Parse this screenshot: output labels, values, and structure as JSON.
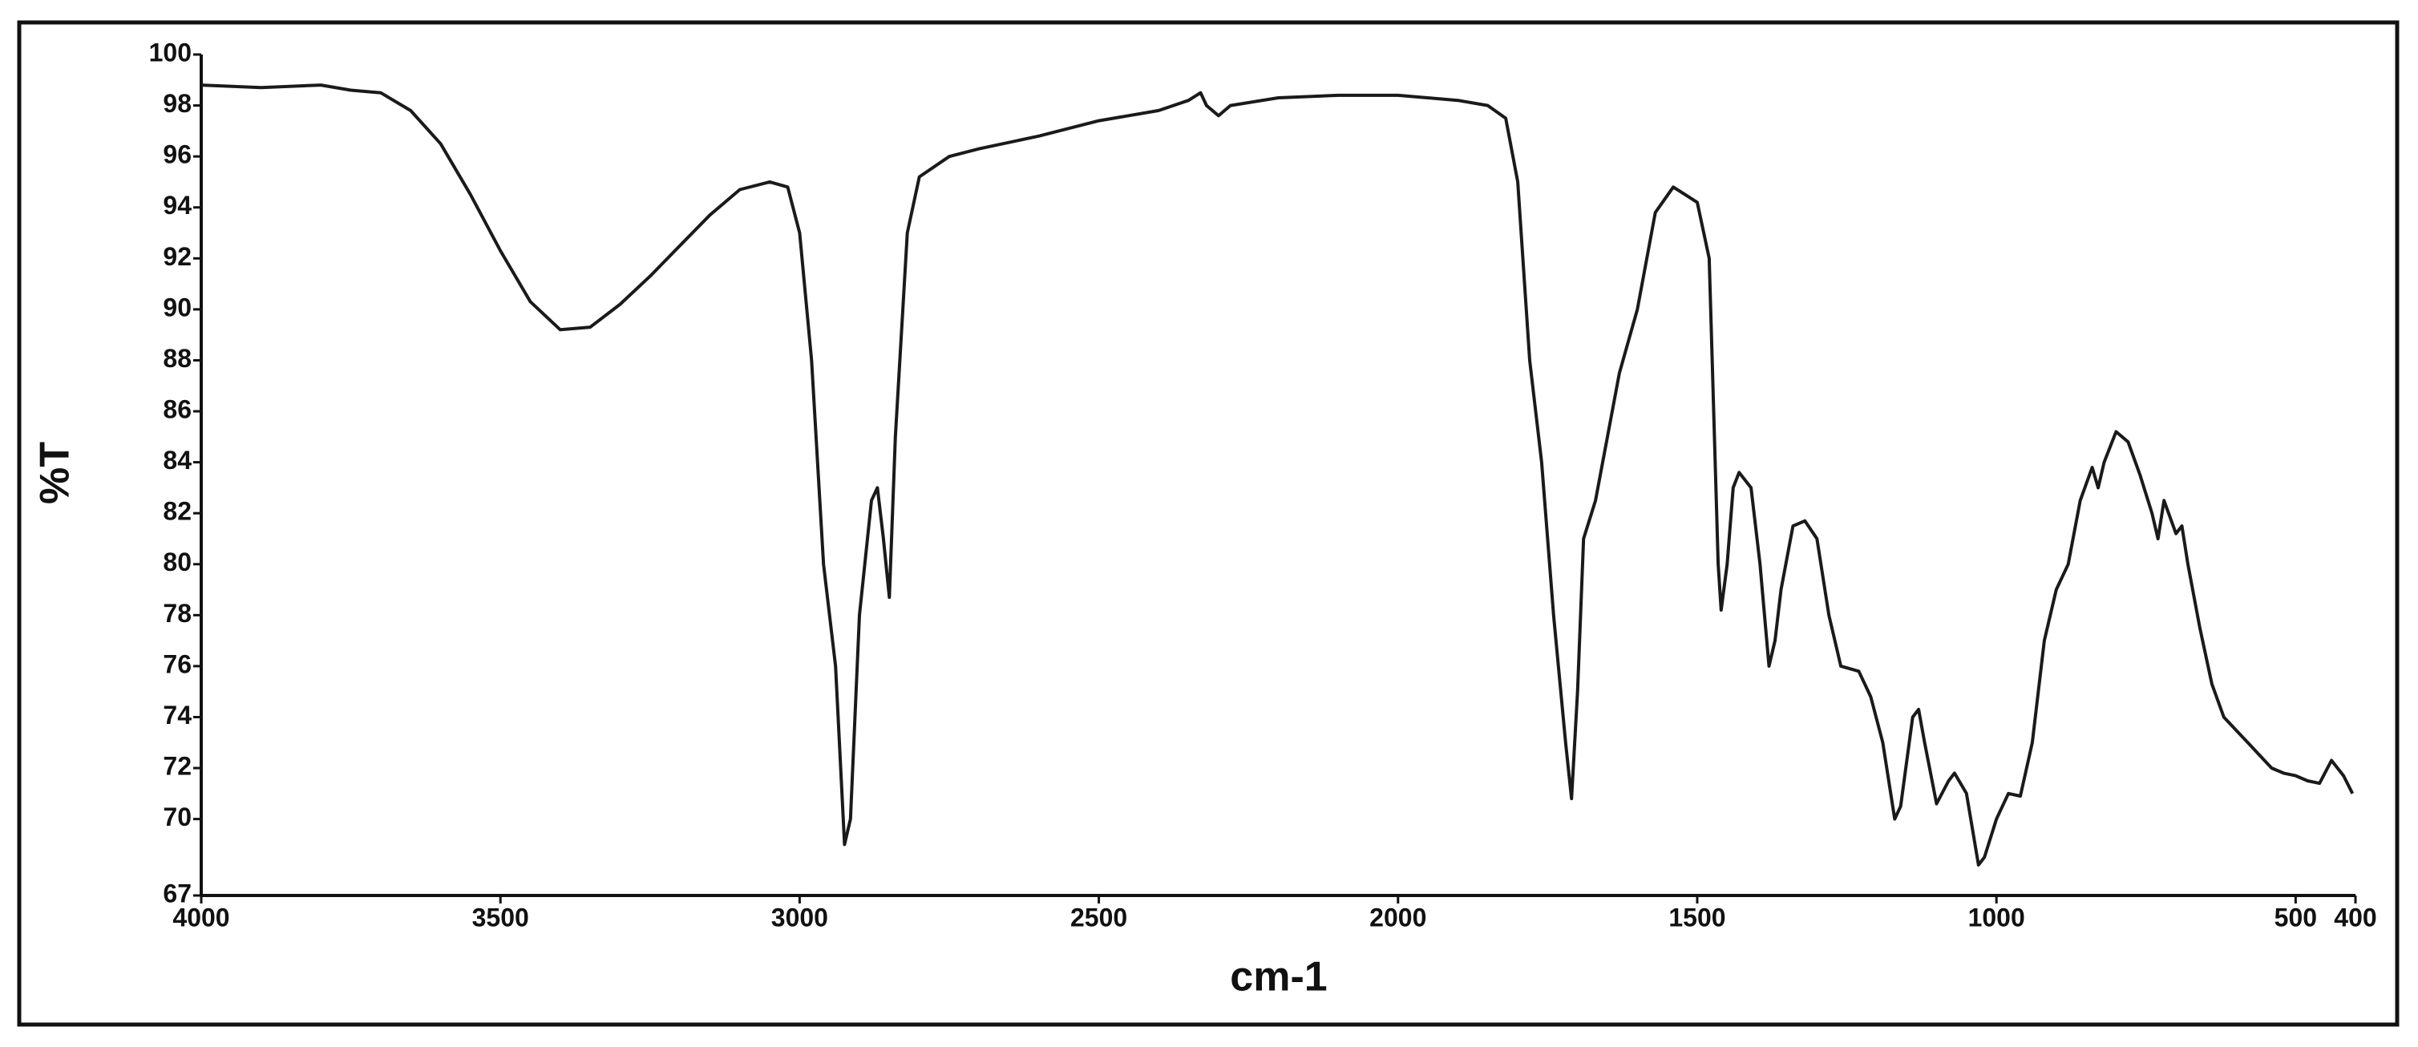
{
  "chart_data": {
    "type": "line",
    "xlabel": "cm-1",
    "ylabel": "%T",
    "x": [
      4000,
      3900,
      3800,
      3750,
      3700,
      3650,
      3600,
      3550,
      3500,
      3450,
      3400,
      3350,
      3300,
      3250,
      3200,
      3150,
      3100,
      3050,
      3020,
      3000,
      2980,
      2960,
      2940,
      2925,
      2915,
      2900,
      2880,
      2870,
      2860,
      2850,
      2840,
      2820,
      2800,
      2750,
      2700,
      2600,
      2500,
      2400,
      2350,
      2330,
      2320,
      2300,
      2280,
      2200,
      2100,
      2000,
      1900,
      1850,
      1820,
      1800,
      1780,
      1760,
      1740,
      1720,
      1710,
      1700,
      1690,
      1670,
      1650,
      1630,
      1600,
      1570,
      1540,
      1520,
      1500,
      1480,
      1465,
      1460,
      1450,
      1440,
      1430,
      1410,
      1395,
      1380,
      1370,
      1360,
      1340,
      1320,
      1300,
      1280,
      1260,
      1230,
      1210,
      1190,
      1170,
      1160,
      1140,
      1130,
      1120,
      1100,
      1080,
      1070,
      1050,
      1030,
      1020,
      1000,
      980,
      960,
      940,
      920,
      900,
      880,
      860,
      840,
      830,
      820,
      800,
      780,
      760,
      740,
      730,
      720,
      700,
      690,
      680,
      660,
      640,
      620,
      600,
      580,
      560,
      540,
      520,
      500,
      480,
      460,
      440,
      420,
      405
    ],
    "values": [
      98.8,
      98.7,
      98.8,
      98.6,
      98.5,
      97.8,
      96.5,
      94.5,
      92.3,
      90.3,
      89.2,
      89.3,
      90.2,
      91.3,
      92.5,
      93.7,
      94.7,
      95.0,
      94.8,
      93.0,
      88,
      80,
      76,
      69,
      70,
      78,
      82.5,
      83,
      81,
      78.7,
      85,
      93,
      95.2,
      96.0,
      96.3,
      96.8,
      97.4,
      97.8,
      98.2,
      98.5,
      98.0,
      97.6,
      98.0,
      98.3,
      98.4,
      98.4,
      98.2,
      98.0,
      97.5,
      95,
      88,
      84,
      78,
      73,
      70.8,
      75,
      81,
      82.5,
      85,
      87.5,
      90,
      93.8,
      94.8,
      94.5,
      94.2,
      92,
      80,
      78.2,
      80,
      83,
      83.6,
      83,
      80,
      76,
      77,
      79,
      81.5,
      81.7,
      81,
      78,
      76,
      75.8,
      74.8,
      73,
      70,
      70.5,
      74,
      74.3,
      73,
      70.6,
      71.5,
      71.8,
      71,
      68.2,
      68.5,
      70,
      71,
      70.9,
      73,
      77,
      79,
      80,
      82.5,
      83.8,
      83,
      84,
      85.2,
      84.8,
      83.5,
      82,
      81,
      82.5,
      81.2,
      81.5,
      80,
      77.5,
      75.3,
      74,
      73.5,
      73,
      72.5,
      72,
      71.8,
      71.7,
      71.5,
      71.4,
      72.3,
      71.7,
      71
    ],
    "color": "#1a1a1a",
    "xlim": [
      4000,
      400
    ],
    "xticks": [
      4000,
      3500,
      3000,
      2500,
      2000,
      1500,
      1000,
      500,
      400
    ],
    "ylim": [
      67,
      100
    ],
    "yticks": [
      67,
      70,
      72,
      74,
      76,
      78,
      80,
      82,
      84,
      86,
      88,
      90,
      92,
      94,
      96,
      98,
      100
    ],
    "grid": false
  }
}
